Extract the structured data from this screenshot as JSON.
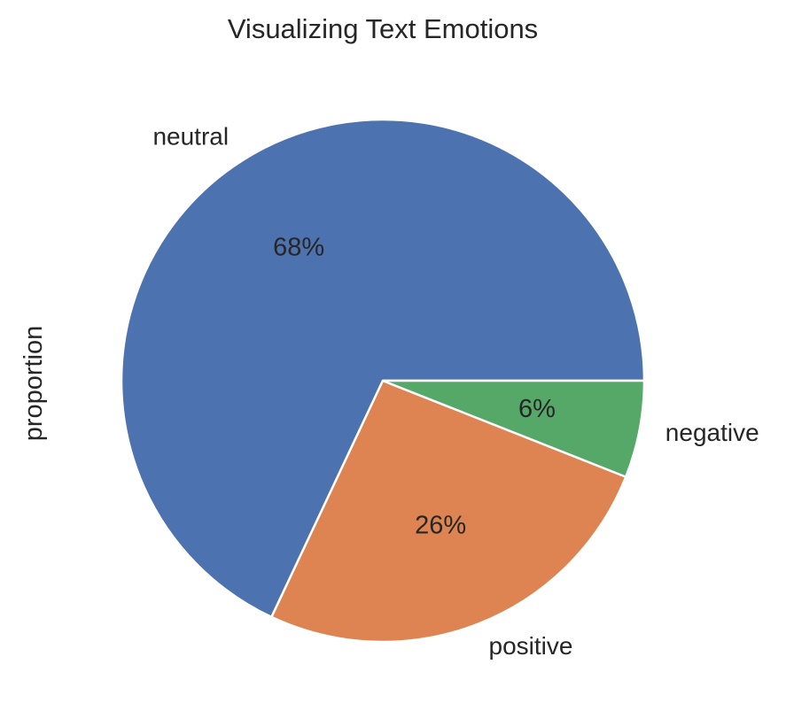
{
  "chart_data": {
    "type": "pie",
    "title": "Visualizing Text Emotions",
    "ylabel": "proportion",
    "start_angle_deg": 0,
    "direction": "counterclockwise",
    "slices": [
      {
        "label": "neutral",
        "value": 68,
        "pct_label": "68%",
        "color": "#4c72b0"
      },
      {
        "label": "positive",
        "value": 26,
        "pct_label": "26%",
        "color": "#dd8452"
      },
      {
        "label": "negative",
        "value": 6,
        "pct_label": "6%",
        "color": "#55a868"
      }
    ],
    "wedge_edge_color": "#ffffff"
  }
}
